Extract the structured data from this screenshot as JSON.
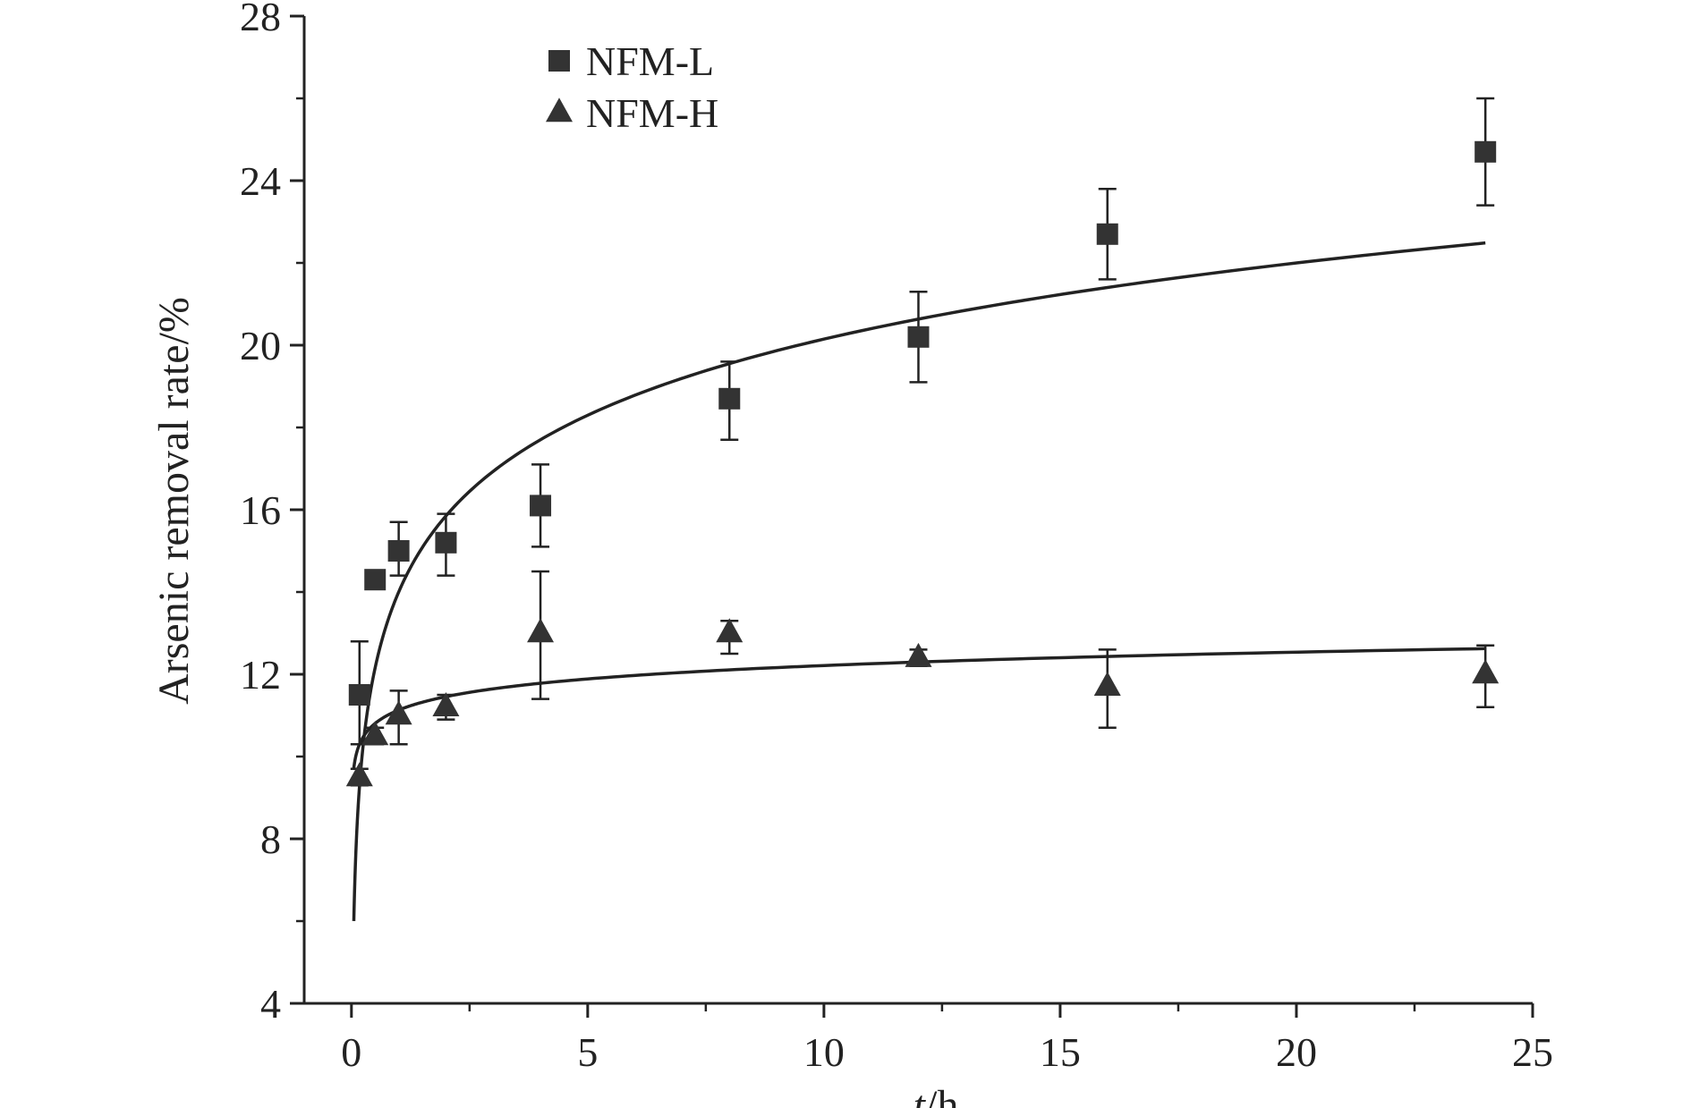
{
  "chart_data": {
    "type": "scatter",
    "title": "",
    "xlabel_italic": "t",
    "xlabel_rest": "/h",
    "ylabel": "Arsenic removal rate/%",
    "xlim": [
      -1,
      25
    ],
    "ylim": [
      4,
      28
    ],
    "xticks": [
      0,
      5,
      10,
      15,
      20,
      25
    ],
    "xtick_labels": [
      "0",
      "5",
      "10",
      "15",
      "20",
      "25"
    ],
    "yticks": [
      4,
      8,
      12,
      16,
      20,
      24,
      28
    ],
    "ytick_labels": [
      "4",
      "8",
      "12",
      "16",
      "20",
      "24",
      "28"
    ],
    "grid": false,
    "legend_position": "top-left",
    "colors": {
      "marker": "#333333",
      "axis": "#222222"
    },
    "series": [
      {
        "name": "NFM-L",
        "marker": "square",
        "x": [
          0.17,
          0.5,
          1,
          2,
          4,
          8,
          12,
          16,
          24
        ],
        "y": [
          11.5,
          14.3,
          15.0,
          15.2,
          16.1,
          18.7,
          20.2,
          22.7,
          24.7
        ],
        "err_low": [
          10.3,
          14.1,
          14.4,
          14.4,
          15.1,
          17.7,
          19.1,
          21.6,
          23.4
        ],
        "err_high": [
          12.8,
          14.5,
          15.7,
          15.9,
          17.1,
          19.6,
          21.3,
          23.8,
          26.0
        ],
        "fit": {
          "x_start": 0.05,
          "x_end": 24,
          "a": 14.0,
          "b": 2.67
        }
      },
      {
        "name": "NFM-H",
        "marker": "triangle",
        "x": [
          0.17,
          0.5,
          1,
          2,
          4,
          8,
          12,
          16,
          24
        ],
        "y": [
          9.5,
          10.5,
          11.0,
          11.2,
          13.0,
          13.0,
          12.4,
          11.7,
          12.0
        ],
        "err_low": [
          9.3,
          10.3,
          10.3,
          10.9,
          11.4,
          12.5,
          12.2,
          10.7,
          11.2
        ],
        "err_high": [
          9.7,
          10.7,
          11.6,
          11.5,
          14.5,
          13.3,
          12.6,
          12.6,
          12.7
        ],
        "fit": {
          "x_start": 0.05,
          "x_end": 24,
          "a": 11.13,
          "b": 0.47
        }
      }
    ]
  }
}
